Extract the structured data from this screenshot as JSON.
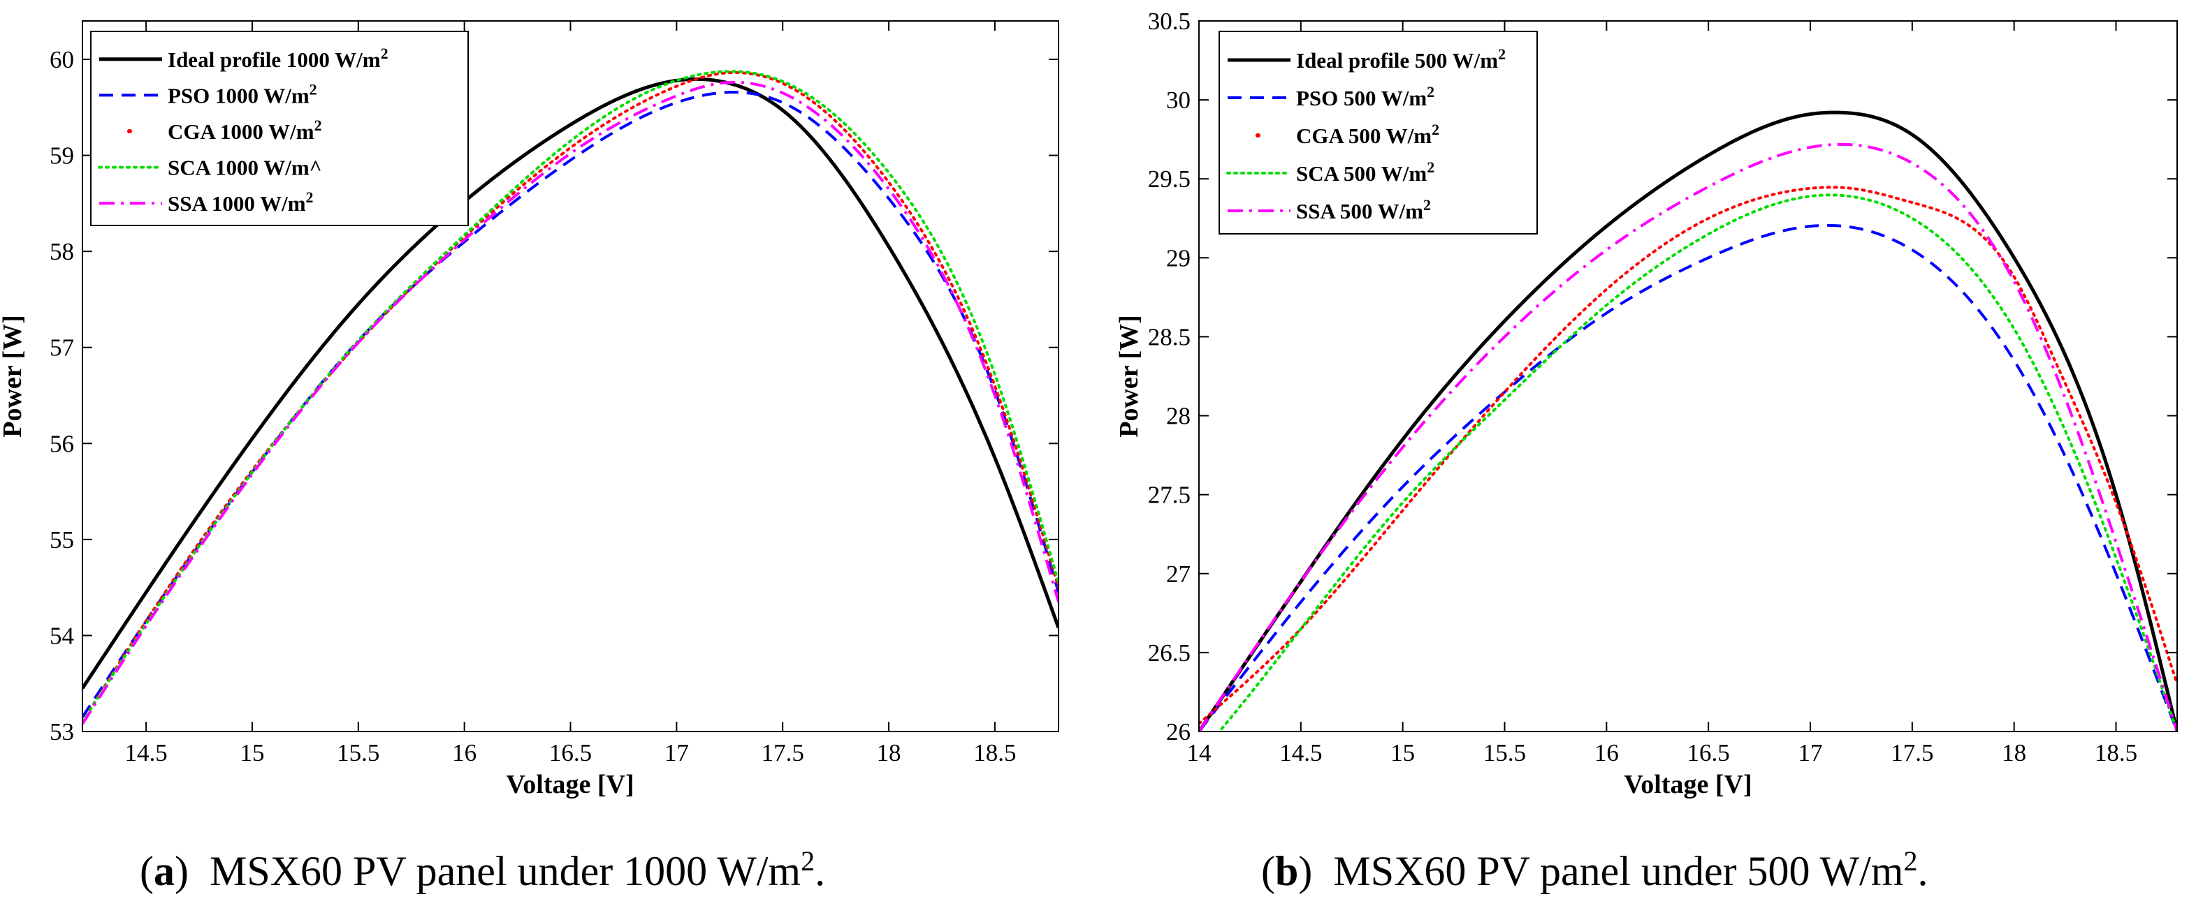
{
  "chart_data": [
    {
      "type": "line",
      "caption_letter": "a",
      "caption_text": "MSX60 PV panel under 1000 W/m",
      "caption_sup": "2",
      "xlabel": "Voltage [V]",
      "ylabel": "Power [W]",
      "xlim": [
        14.2,
        18.8
      ],
      "ylim": [
        53,
        60.4
      ],
      "xticks": [
        14.5,
        15,
        15.5,
        16,
        16.5,
        17,
        17.5,
        18,
        18.5
      ],
      "yticks": [
        53,
        54,
        55,
        56,
        57,
        58,
        59,
        60
      ],
      "xtick_labels": [
        "14.5",
        "15",
        "15.5",
        "16",
        "16.5",
        "17",
        "17.5",
        "18",
        "18.5"
      ],
      "ytick_labels": [
        "53",
        "54",
        "55",
        "56",
        "57",
        "58",
        "59",
        "60"
      ],
      "legend_position": "top-left",
      "grid": false,
      "series": [
        {
          "name": "Ideal profile 1000 W/m",
          "sup": "2",
          "color": "#000000",
          "style": "solid",
          "x": [
            14.2,
            14.5,
            15.0,
            15.5,
            16.0,
            16.5,
            17.0,
            17.25,
            17.5,
            18.0,
            18.5,
            18.8
          ],
          "y": [
            53.45,
            54.45,
            56.05,
            57.45,
            58.52,
            59.32,
            59.78,
            59.75,
            59.47,
            58.05,
            55.85,
            54.08
          ]
        },
        {
          "name": "PSO 1000 W/m",
          "sup": "2",
          "color": "#0000ff",
          "style": "dashed",
          "x": [
            14.2,
            14.5,
            15.0,
            15.5,
            16.0,
            16.5,
            17.0,
            17.2,
            17.5,
            18.0,
            18.5,
            18.8
          ],
          "y": [
            53.15,
            54.15,
            55.7,
            57.07,
            58.1,
            58.95,
            59.55,
            59.65,
            59.55,
            58.55,
            56.55,
            54.45
          ]
        },
        {
          "name": "CGA 1000 W/m",
          "sup": "2",
          "color": "#ff0000",
          "style": "dotted",
          "x": [
            14.2,
            14.5,
            15.0,
            15.5,
            16.0,
            16.5,
            17.0,
            17.2,
            17.5,
            18.0,
            18.5,
            18.8
          ],
          "y": [
            53.1,
            54.15,
            55.72,
            57.05,
            58.15,
            59.08,
            59.72,
            59.85,
            59.75,
            58.72,
            56.6,
            54.5
          ]
        },
        {
          "name": "SCA 1000 W/m^",
          "sup": "",
          "color": "#00dd00",
          "style": "dotted",
          "x": [
            14.2,
            14.5,
            15.0,
            15.5,
            16.0,
            16.5,
            17.0,
            17.2,
            17.5,
            18.0,
            18.5,
            18.8
          ],
          "y": [
            53.1,
            54.12,
            55.7,
            57.07,
            58.17,
            59.15,
            59.78,
            59.87,
            59.77,
            58.82,
            56.72,
            54.55
          ]
        },
        {
          "name": "SSA 1000 W/m",
          "sup": "2",
          "color": "#ff00ff",
          "style": "dashdot",
          "x": [
            14.2,
            14.5,
            15.0,
            15.5,
            16.0,
            16.5,
            17.0,
            17.2,
            17.5,
            18.0,
            18.5,
            18.8
          ],
          "y": [
            53.08,
            54.1,
            55.68,
            57.05,
            58.12,
            59.02,
            59.62,
            59.75,
            59.65,
            58.65,
            56.5,
            54.35
          ]
        }
      ]
    },
    {
      "type": "line",
      "caption_letter": "b",
      "caption_text": "MSX60 PV panel under 500 W/m",
      "caption_sup": "2",
      "xlabel": "Voltage [V]",
      "ylabel": "Power [W]",
      "xlim": [
        14,
        18.8
      ],
      "ylim": [
        26,
        30.5
      ],
      "xticks": [
        14,
        14.5,
        15,
        15.5,
        16,
        16.5,
        17,
        17.5,
        18,
        18.5
      ],
      "yticks": [
        26,
        26.5,
        27,
        27.5,
        28,
        28.5,
        29,
        29.5,
        30,
        30.5
      ],
      "xtick_labels": [
        "14",
        "14.5",
        "15",
        "15.5",
        "16",
        "16.5",
        "17",
        "17.5",
        "18",
        "18.5"
      ],
      "ytick_labels": [
        "26",
        "26.5",
        "27",
        "27.5",
        "28",
        "28.5",
        "29",
        "29.5",
        "30",
        "30.5"
      ],
      "legend_position": "top-left",
      "grid": false,
      "series": [
        {
          "name": "Ideal profile 500 W/m",
          "sup": "2",
          "color": "#000000",
          "style": "solid",
          "x": [
            14.0,
            14.5,
            15.0,
            15.5,
            16.0,
            16.5,
            17.0,
            17.1,
            17.5,
            18.0,
            18.5,
            18.8
          ],
          "y": [
            26.0,
            26.95,
            27.85,
            28.6,
            29.2,
            29.65,
            29.91,
            29.92,
            29.78,
            29.0,
            27.5,
            26.0
          ]
        },
        {
          "name": "PSO 500 W/m",
          "sup": "2",
          "color": "#0000ff",
          "style": "dashed",
          "x": [
            14.0,
            14.5,
            15.0,
            15.5,
            16.0,
            16.5,
            17.0,
            17.5,
            18.0,
            18.5,
            18.8
          ],
          "y": [
            26.0,
            26.82,
            27.55,
            28.15,
            28.65,
            29.0,
            29.2,
            29.05,
            28.35,
            27.0,
            26.0
          ]
        },
        {
          "name": "CGA 500 W/m",
          "sup": "2",
          "color": "#ff0000",
          "style": "dotted",
          "x": [
            14.0,
            14.5,
            15.0,
            15.5,
            16.0,
            16.5,
            17.0,
            17.2,
            17.5,
            18.0,
            18.2,
            18.5,
            18.8
          ],
          "y": [
            26.05,
            26.65,
            27.4,
            28.15,
            28.8,
            29.25,
            29.44,
            29.44,
            29.35,
            28.88,
            28.35,
            27.45,
            26.3
          ]
        },
        {
          "name": "SCA 500 W/m",
          "sup": "2",
          "color": "#00dd00",
          "style": "dotted",
          "x": [
            14.0,
            14.1,
            14.5,
            15.0,
            15.5,
            16.0,
            16.5,
            17.0,
            17.5,
            18.0,
            18.5,
            18.8
          ],
          "y": [
            25.85,
            26.0,
            26.65,
            27.45,
            28.1,
            28.7,
            29.15,
            29.39,
            29.25,
            28.55,
            27.1,
            26.0
          ]
        },
        {
          "name": "SSA 500 W/m",
          "sup": "2",
          "color": "#ff00ff",
          "style": "dashdot",
          "x": [
            14.0,
            14.5,
            15.0,
            15.5,
            16.0,
            16.5,
            17.0,
            17.5,
            18.0,
            18.5,
            18.8
          ],
          "y": [
            26.0,
            26.95,
            27.8,
            28.5,
            29.05,
            29.45,
            29.7,
            29.6,
            28.85,
            27.2,
            26.0
          ]
        }
      ]
    }
  ]
}
